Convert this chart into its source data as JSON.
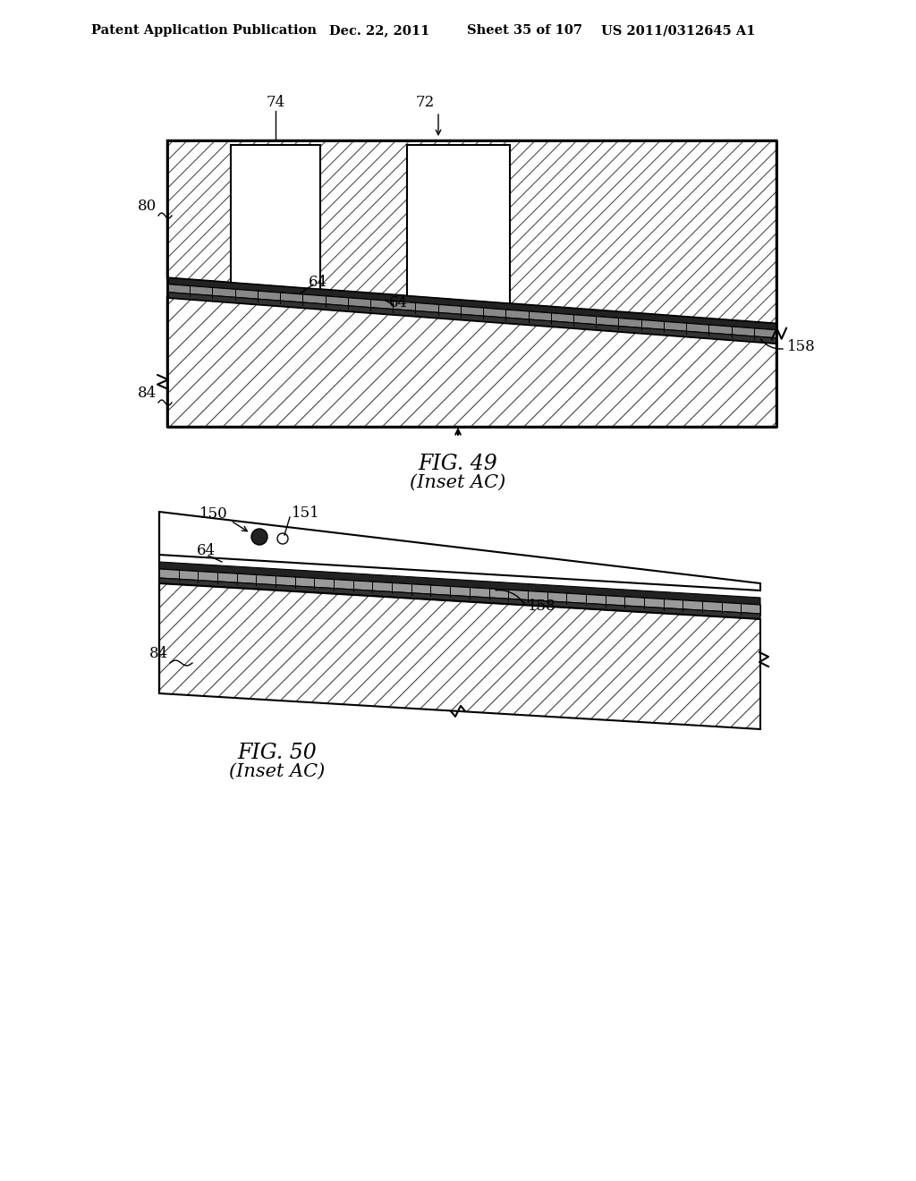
{
  "bg_color": "#ffffff",
  "header_text": "Patent Application Publication",
  "header_date": "Dec. 22, 2011",
  "header_sheet": "Sheet 35 of 107",
  "header_patent": "US 2011/0312645 A1",
  "fig49_caption": "FIG. 49",
  "fig49_subcaption": "(Inset AC)",
  "fig50_caption": "FIG. 50",
  "fig50_subcaption": "(Inset AC)"
}
